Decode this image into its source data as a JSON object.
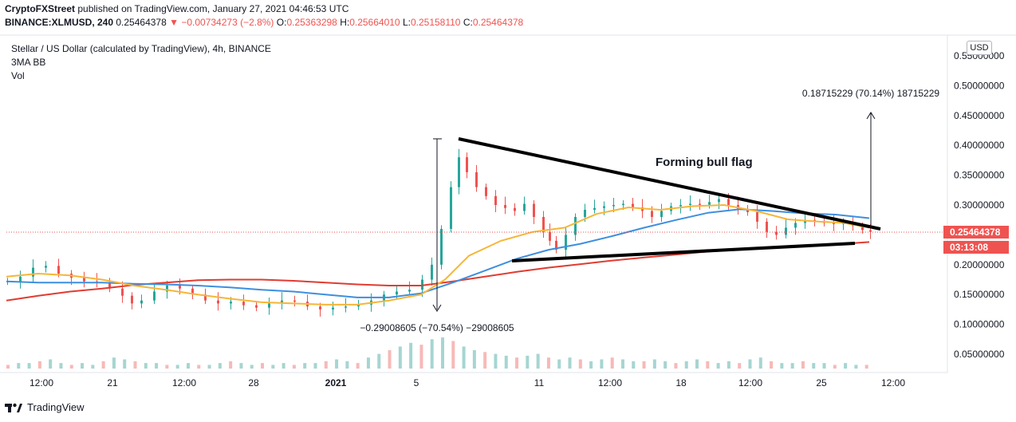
{
  "header": {
    "publisher": "CryptoFXStreet",
    "published_text": "published on TradingView.com, January 27, 2021 04:46:53 UTC",
    "symbol": "BINANCE:XLMUSD, 240",
    "last": "0.25464378",
    "change": "▼ −0.00734273 (−2.8%)",
    "o_label": "O:",
    "o_value": "0.25363298",
    "h_label": "H:",
    "h_value": "0.25664010",
    "l_label": "L:",
    "l_value": "0.25158110",
    "c_label": "C:",
    "c_value": "0.25464378"
  },
  "legend": {
    "title": "Stellar / US Dollar (calculated by TradingView), 4h, BINANCE",
    "indicator": "3MA BB",
    "volume": "Vol"
  },
  "price_scale": {
    "currency_button": "USD",
    "current_price": "0.25464378",
    "countdown": "03:13:08"
  },
  "footer": {
    "brand": "TradingView"
  },
  "colors": {
    "up": "#26a69a",
    "down": "#ef5350",
    "ma_fast": "#f6b638",
    "ma_mid": "#3d8fe0",
    "ma_slow": "#e03c31",
    "trendline": "#000000"
  },
  "chart_data": {
    "type": "candlestick",
    "annotations": {
      "drop_measure": "−0.29008605 (−70.54%) −29008605",
      "target_measure": "0.18715229 (70.14%) 18715229",
      "pattern_label": "Forming bull flag"
    },
    "y_ticks": [
      "0.55000000",
      "0.50000000",
      "0.45000000",
      "0.40000000",
      "0.35000000",
      "0.30000000",
      "0.25000000",
      "0.20000000",
      "0.15000000",
      "0.10000000",
      "0.05000000"
    ],
    "x_ticks": [
      "12:00",
      "21",
      "12:00",
      "28",
      "2021",
      "5",
      "11",
      "12:00",
      "18",
      "12:00",
      "25",
      "12:00"
    ],
    "ylim": [
      0.0,
      0.57
    ],
    "price_path": [
      [
        0,
        0.172
      ],
      [
        8,
        0.18
      ],
      [
        16,
        0.195
      ],
      [
        24,
        0.198
      ],
      [
        32,
        0.185
      ],
      [
        40,
        0.178
      ],
      [
        48,
        0.172
      ],
      [
        56,
        0.17
      ],
      [
        64,
        0.16
      ],
      [
        72,
        0.148
      ],
      [
        78,
        0.135
      ],
      [
        84,
        0.14
      ],
      [
        92,
        0.155
      ],
      [
        100,
        0.165
      ],
      [
        108,
        0.16
      ],
      [
        116,
        0.15
      ],
      [
        124,
        0.14
      ],
      [
        132,
        0.135
      ],
      [
        140,
        0.138
      ],
      [
        148,
        0.132
      ],
      [
        156,
        0.128
      ],
      [
        164,
        0.135
      ],
      [
        172,
        0.14
      ],
      [
        180,
        0.138
      ],
      [
        188,
        0.13
      ],
      [
        196,
        0.125
      ],
      [
        204,
        0.128
      ],
      [
        212,
        0.13
      ],
      [
        220,
        0.133
      ],
      [
        228,
        0.14
      ],
      [
        236,
        0.15
      ],
      [
        244,
        0.155
      ],
      [
        252,
        0.158
      ],
      [
        260,
        0.175
      ],
      [
        266,
        0.2
      ],
      [
        272,
        0.26
      ],
      [
        278,
        0.33
      ],
      [
        283,
        0.38
      ],
      [
        288,
        0.355
      ],
      [
        294,
        0.33
      ],
      [
        300,
        0.315
      ],
      [
        306,
        0.3
      ],
      [
        312,
        0.295
      ],
      [
        318,
        0.29
      ],
      [
        324,
        0.302
      ],
      [
        330,
        0.28
      ],
      [
        336,
        0.255
      ],
      [
        340,
        0.24
      ],
      [
        344,
        0.225
      ],
      [
        350,
        0.25
      ],
      [
        356,
        0.28
      ],
      [
        362,
        0.292
      ],
      [
        368,
        0.295
      ],
      [
        374,
        0.298
      ],
      [
        380,
        0.3
      ],
      [
        386,
        0.302
      ],
      [
        392,
        0.296
      ],
      [
        398,
        0.29
      ],
      [
        404,
        0.28
      ],
      [
        410,
        0.29
      ],
      [
        416,
        0.298
      ],
      [
        422,
        0.3
      ],
      [
        428,
        0.302
      ],
      [
        434,
        0.3
      ],
      [
        440,
        0.305
      ],
      [
        446,
        0.31
      ],
      [
        452,
        0.3
      ],
      [
        458,
        0.292
      ],
      [
        464,
        0.288
      ],
      [
        470,
        0.272
      ],
      [
        476,
        0.255
      ],
      [
        482,
        0.25
      ],
      [
        488,
        0.262
      ],
      [
        494,
        0.27
      ],
      [
        500,
        0.275
      ],
      [
        506,
        0.272
      ],
      [
        512,
        0.27
      ],
      [
        518,
        0.268
      ],
      [
        524,
        0.27
      ],
      [
        530,
        0.265
      ],
      [
        536,
        0.258
      ],
      [
        541,
        0.255
      ]
    ],
    "ma_fast": [
      [
        0,
        0.18
      ],
      [
        20,
        0.185
      ],
      [
        40,
        0.182
      ],
      [
        60,
        0.175
      ],
      [
        80,
        0.165
      ],
      [
        100,
        0.158
      ],
      [
        120,
        0.15
      ],
      [
        140,
        0.143
      ],
      [
        160,
        0.137
      ],
      [
        180,
        0.135
      ],
      [
        200,
        0.133
      ],
      [
        220,
        0.133
      ],
      [
        240,
        0.14
      ],
      [
        260,
        0.15
      ],
      [
        275,
        0.175
      ],
      [
        290,
        0.215
      ],
      [
        310,
        0.24
      ],
      [
        330,
        0.255
      ],
      [
        350,
        0.262
      ],
      [
        370,
        0.285
      ],
      [
        390,
        0.296
      ],
      [
        410,
        0.292
      ],
      [
        430,
        0.298
      ],
      [
        450,
        0.3
      ],
      [
        470,
        0.29
      ],
      [
        490,
        0.276
      ],
      [
        510,
        0.272
      ],
      [
        525,
        0.27
      ],
      [
        541,
        0.262
      ]
    ],
    "ma_mid": [
      [
        0,
        0.172
      ],
      [
        20,
        0.17
      ],
      [
        40,
        0.17
      ],
      [
        60,
        0.17
      ],
      [
        80,
        0.168
      ],
      [
        100,
        0.167
      ],
      [
        120,
        0.165
      ],
      [
        140,
        0.162
      ],
      [
        160,
        0.158
      ],
      [
        180,
        0.155
      ],
      [
        200,
        0.15
      ],
      [
        220,
        0.145
      ],
      [
        240,
        0.145
      ],
      [
        260,
        0.152
      ],
      [
        280,
        0.17
      ],
      [
        300,
        0.19
      ],
      [
        320,
        0.21
      ],
      [
        340,
        0.225
      ],
      [
        360,
        0.235
      ],
      [
        380,
        0.248
      ],
      [
        400,
        0.262
      ],
      [
        420,
        0.275
      ],
      [
        440,
        0.287
      ],
      [
        460,
        0.293
      ],
      [
        480,
        0.29
      ],
      [
        500,
        0.286
      ],
      [
        520,
        0.284
      ],
      [
        541,
        0.278
      ]
    ],
    "ma_slow": [
      [
        0,
        0.14
      ],
      [
        20,
        0.148
      ],
      [
        40,
        0.155
      ],
      [
        60,
        0.16
      ],
      [
        80,
        0.166
      ],
      [
        100,
        0.17
      ],
      [
        120,
        0.174
      ],
      [
        140,
        0.175
      ],
      [
        160,
        0.175
      ],
      [
        180,
        0.173
      ],
      [
        200,
        0.17
      ],
      [
        220,
        0.167
      ],
      [
        240,
        0.165
      ],
      [
        260,
        0.165
      ],
      [
        280,
        0.172
      ],
      [
        300,
        0.18
      ],
      [
        320,
        0.188
      ],
      [
        340,
        0.195
      ],
      [
        360,
        0.201
      ],
      [
        380,
        0.207
      ],
      [
        400,
        0.212
      ],
      [
        420,
        0.217
      ],
      [
        440,
        0.222
      ],
      [
        460,
        0.225
      ],
      [
        480,
        0.228
      ],
      [
        500,
        0.231
      ],
      [
        520,
        0.234
      ],
      [
        541,
        0.238
      ]
    ],
    "volume": [
      2,
      3,
      3,
      4,
      5,
      3,
      2,
      3,
      2,
      4,
      6,
      5,
      4,
      3,
      3,
      2,
      2,
      3,
      2,
      2,
      3,
      4,
      3,
      2,
      3,
      2,
      3,
      2,
      3,
      3,
      4,
      5,
      4,
      3,
      6,
      8,
      10,
      12,
      14,
      13,
      16,
      17,
      15,
      12,
      10,
      9,
      8,
      7,
      6,
      7,
      8,
      6,
      5,
      6,
      5,
      4,
      5,
      6,
      5,
      4,
      4,
      5,
      4,
      3,
      4,
      5,
      4,
      3,
      4,
      3,
      5,
      6,
      4,
      3,
      3,
      4,
      3,
      3,
      2,
      3,
      2,
      2
    ]
  }
}
